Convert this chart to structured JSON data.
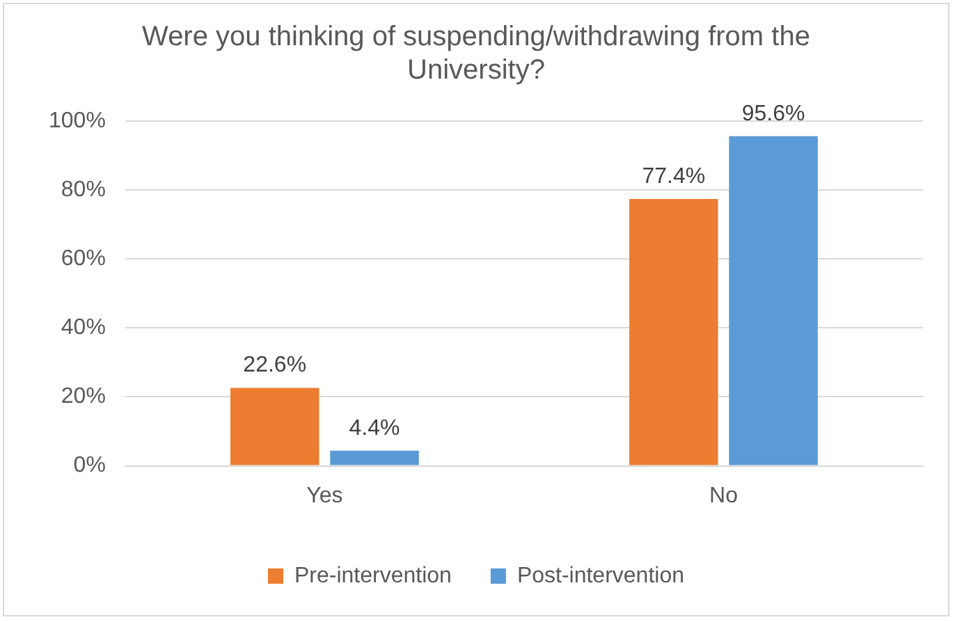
{
  "chart_data": {
    "type": "bar",
    "title": "Were you thinking of suspending/withdrawing from the University?",
    "categories": [
      "Yes",
      "No"
    ],
    "series": [
      {
        "name": "Pre-intervention",
        "color": "#ed7d31",
        "values": [
          22.6,
          77.4
        ],
        "value_labels": [
          "22.6%",
          "77.4%"
        ]
      },
      {
        "name": "Post-intervention",
        "color": "#5b9bd5",
        "values": [
          4.4,
          95.6
        ],
        "value_labels": [
          "4.4%",
          "95.6%"
        ]
      }
    ],
    "ylim": [
      0,
      100
    ],
    "yticks": [
      {
        "value": 0,
        "label": "0%"
      },
      {
        "value": 20,
        "label": "20%"
      },
      {
        "value": 40,
        "label": "40%"
      },
      {
        "value": 60,
        "label": "60%"
      },
      {
        "value": 80,
        "label": "80%"
      },
      {
        "value": 100,
        "label": "100%"
      }
    ],
    "grid": "y",
    "legend": "bottom"
  }
}
